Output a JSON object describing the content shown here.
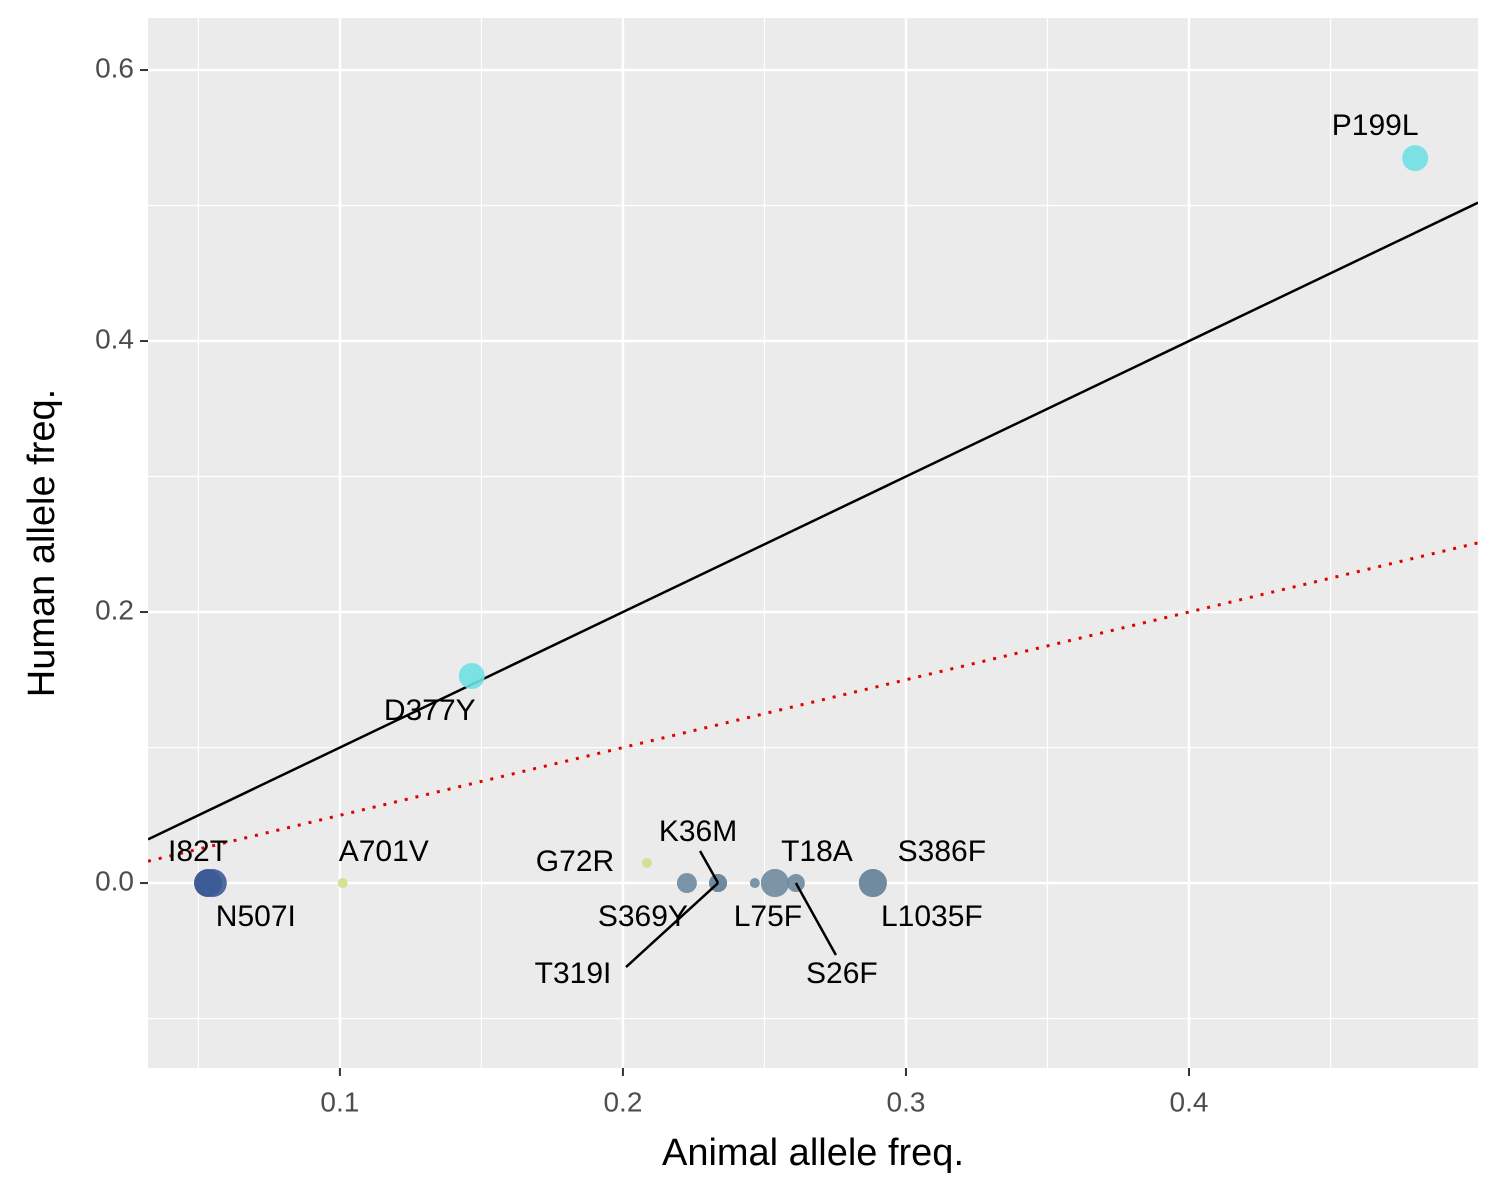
{
  "chart_data": {
    "type": "scatter",
    "x_label": "Animal allele freq.",
    "y_label": "Human allele freq.",
    "xlim": [
      0.0322,
      0.5021
    ],
    "ylim": [
      -0.1365,
      0.6384
    ],
    "xticks": [
      0.1,
      0.2,
      0.3,
      0.4
    ],
    "yticks": [
      {
        "value": 0,
        "label": "0.0"
      },
      0.2,
      0.4,
      0.6
    ],
    "minor_xticks": [
      0.05,
      0.15,
      0.25,
      0.35,
      0.45
    ],
    "minor_yticks": [
      -0.1,
      0.1,
      0.3,
      0.5
    ],
    "grid": true,
    "lines": [
      {
        "slope": 1,
        "intercept": 0,
        "color": "#000000",
        "style": "solid"
      },
      {
        "slope": 0.5,
        "intercept": 0,
        "color": "#e00000",
        "style": "dotted"
      }
    ],
    "points": [
      {
        "label": "I82T",
        "x": 0.0534,
        "y": 0,
        "size": 14,
        "color": "#2a4a8a"
      },
      {
        "label": "N507I",
        "x": 0.0551,
        "y": 0,
        "size": 14,
        "color": "#3d5c98"
      },
      {
        "label": "A701V",
        "x": 0.101,
        "y": 0,
        "size": 5,
        "color": "#cfe08a"
      },
      {
        "label": "G72R",
        "x": 0.2085,
        "y": 0.0148,
        "size": 5,
        "color": "#cfe08a"
      },
      {
        "label": "D377Y",
        "x": 0.1466,
        "y": 0.1528,
        "size": 13,
        "color": "#70e0e4"
      },
      {
        "label": "P199L",
        "x": 0.4799,
        "y": 0.535,
        "size": 13,
        "color": "#70e0e4"
      },
      {
        "label": "S369Y",
        "x": 0.2226,
        "y": 0,
        "size": 10,
        "color": "#6f8a9e"
      },
      {
        "label": "K36M",
        "x": 0.2336,
        "y": 0,
        "size": 9,
        "color": "#5f7a90"
      },
      {
        "label": "T319I",
        "x": 0.2336,
        "y": 0,
        "size": 9,
        "color": "#6f8a9e"
      },
      {
        "label": null,
        "x": 0.2466,
        "y": 0,
        "size": 5,
        "color": "#6f8a9e"
      },
      {
        "label": "L75F",
        "x": 0.2537,
        "y": 0,
        "size": 14,
        "color": "#7a94a6"
      },
      {
        "label": "T18A",
        "x": 0.2537,
        "y": 0,
        "size": 14,
        "color": "#7a94a6"
      },
      {
        "label": "S26F",
        "x": 0.2611,
        "y": 0,
        "size": 9,
        "color": "#6f8a9e"
      },
      {
        "label": "S386F",
        "x": 0.2883,
        "y": 0,
        "size": 14,
        "color": "#6a8498"
      },
      {
        "label": "L1035F",
        "x": 0.2883,
        "y": 0,
        "size": 14,
        "color": "#6f8a9e"
      }
    ]
  }
}
